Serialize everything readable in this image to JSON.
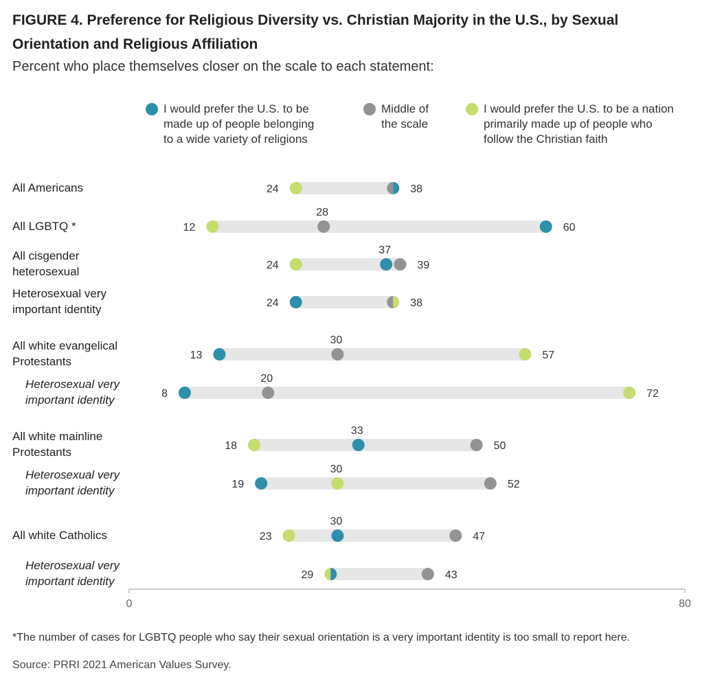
{
  "header": {
    "title": "FIGURE 4.  Preference for Religious Diversity vs. Christian Majority in the U.S., by Sexual Orientation and Religious Affiliation",
    "subtitle": "Percent who place themselves closer on the scale to each statement:"
  },
  "legend": [
    {
      "label_lines": [
        "I would prefer the U.S. to be",
        "made up of people belonging",
        "to a wide variety of religions"
      ],
      "color": "#2e8faa"
    },
    {
      "label_lines": [
        "Middle of",
        "the scale"
      ],
      "color": "#939393"
    },
    {
      "label_lines": [
        "I would prefer the U.S. to be a nation",
        "primarily made up of people who",
        "follow the Christian faith"
      ],
      "color": "#c5dc6e"
    }
  ],
  "colors": {
    "variety": "#2e8faa",
    "middle": "#939393",
    "christian": "#c5dc6e",
    "track": "#e6e6e6",
    "axis": "#bbbbbb"
  },
  "chart_data": {
    "type": "dot",
    "xlim": [
      0,
      80
    ],
    "xticks": [
      "0",
      "80"
    ],
    "series": [
      {
        "name": "I would prefer the U.S. to be made up of people belonging to a wide variety of religions",
        "key": "variety"
      },
      {
        "name": "Middle of the scale",
        "key": "middle"
      },
      {
        "name": "I would prefer the U.S. to be a nation primarily made up of people who follow the Christian faith",
        "key": "christian"
      }
    ],
    "rows": [
      {
        "label": [
          "All Americans"
        ],
        "sub": false,
        "variety": 38,
        "middle": 38,
        "christian": 24
      },
      {
        "label": [
          "All LGBTQ *"
        ],
        "sub": false,
        "variety": 60,
        "middle": 28,
        "christian": 12
      },
      {
        "label": [
          "All cisgender",
          "heterosexual"
        ],
        "sub": false,
        "variety": 37,
        "middle": 39,
        "christian": 24
      },
      {
        "label": [
          "Heterosexual very",
          "important identity"
        ],
        "sub": false,
        "variety": 24,
        "middle": 38,
        "christian": 38
      },
      {
        "label": [
          "All white evangelical",
          "Protestants"
        ],
        "sub": false,
        "variety": 13,
        "middle": 30,
        "christian": 57
      },
      {
        "label": [
          "Heterosexual very",
          "important identity"
        ],
        "sub": true,
        "variety": 8,
        "middle": 20,
        "christian": 72
      },
      {
        "label": [
          "All white mainline",
          "Protestants"
        ],
        "sub": false,
        "variety": 33,
        "middle": 50,
        "christian": 18
      },
      {
        "label": [
          "Heterosexual very",
          "important identity"
        ],
        "sub": true,
        "variety": 19,
        "middle": 52,
        "christian": 30
      },
      {
        "label": [
          "All white Catholics"
        ],
        "sub": false,
        "variety": 30,
        "middle": 47,
        "christian": 23
      },
      {
        "label": [
          "Heterosexual very",
          "important identity"
        ],
        "sub": true,
        "variety": 29,
        "middle": 43,
        "christian": 29
      }
    ]
  },
  "footnote": "*The number of cases for LGBTQ people who say their sexual orientation is a very important identity is too small to report here.",
  "source": "Source: PRRI 2021 American Values Survey."
}
